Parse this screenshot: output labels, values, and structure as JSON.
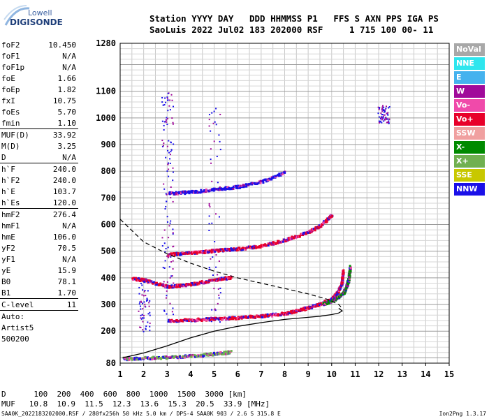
{
  "logo": {
    "top": "Lowell",
    "bottom": "DIGISONDE"
  },
  "header": {
    "line1": "Station YYYY DAY   DDD HHMMSS P1   FFS S AXN PPS IGA PS",
    "line2": "SaoLuis 2022 Jul02 183 202000 RSF     1 715 100 00- 11"
  },
  "params": [
    {
      "label": "foF2",
      "value": "10.450"
    },
    {
      "label": "foF1",
      "value": "N/A"
    },
    {
      "label": "foF1p",
      "value": "N/A"
    },
    {
      "label": "foE",
      "value": "1.66"
    },
    {
      "label": "foEp",
      "value": "1.82"
    },
    {
      "label": "fxI",
      "value": "10.75"
    },
    {
      "label": "foEs",
      "value": "5.70"
    },
    {
      "label": "fmin",
      "value": "1.10",
      "sep_after": true
    },
    {
      "label": "MUF(D)",
      "value": "33.92"
    },
    {
      "label": "M(D)",
      "value": "3.25"
    },
    {
      "label": "D",
      "value": "N/A",
      "sep_after": true
    },
    {
      "label": "h`F",
      "value": "240.0"
    },
    {
      "label": "h`F2",
      "value": "240.0"
    },
    {
      "label": "h`E",
      "value": "103.7"
    },
    {
      "label": "h`Es",
      "value": "120.0",
      "sep_after": true
    },
    {
      "label": "hmF2",
      "value": "276.4"
    },
    {
      "label": "hmF1",
      "value": "N/A"
    },
    {
      "label": "hmE",
      "value": "106.0"
    },
    {
      "label": "yF2",
      "value": "70.5"
    },
    {
      "label": "yF1",
      "value": "N/A"
    },
    {
      "label": "yE",
      "value": "15.9"
    },
    {
      "label": "B0",
      "value": "78.1"
    },
    {
      "label": "B1",
      "value": "1.70",
      "sep_after": true
    },
    {
      "label": "C-level",
      "value": "11",
      "sep_after": true
    },
    {
      "label": "Auto:",
      "value": ""
    },
    {
      "label": "Artist5",
      "value": ""
    },
    {
      "label": "500200",
      "value": ""
    }
  ],
  "legend": [
    {
      "label": "NoVal",
      "color": "#a8a8a8"
    },
    {
      "label": "NNE",
      "color": "#2ee6ee"
    },
    {
      "label": "E",
      "color": "#45b2ee"
    },
    {
      "label": "W",
      "color": "#a00a9a"
    },
    {
      "label": "Vo-",
      "color": "#f04aaa"
    },
    {
      "label": "Vo+",
      "color": "#e8002a"
    },
    {
      "label": "SSW",
      "color": "#f0a0a0"
    },
    {
      "label": "X-",
      "color": "#008a00"
    },
    {
      "label": "X+",
      "color": "#70b050"
    },
    {
      "label": "SSE",
      "color": "#c8c800"
    },
    {
      "label": "NNW",
      "color": "#1a10e8"
    }
  ],
  "chart_data": {
    "type": "scatter",
    "xlim": [
      1,
      15
    ],
    "ylim": [
      80,
      1280
    ],
    "xticks": [
      "1",
      "2",
      "3",
      "4",
      "5",
      "6",
      "7",
      "8",
      "9",
      "10",
      "11",
      "12",
      "13",
      "14",
      "15"
    ],
    "yticks": [
      "80",
      "200",
      "300",
      "400",
      "500",
      "600",
      "700",
      "800",
      "900",
      "1000",
      "1100",
      "1280"
    ],
    "y_grid_values": [
      80,
      100,
      200,
      300,
      400,
      500,
      600,
      700,
      800,
      900,
      1000,
      1100,
      1200,
      1280
    ],
    "grid": true,
    "traces": [
      {
        "name": "O-trace F2 (1 hop)",
        "color": "#e8002a",
        "x": [
          3.0,
          4.0,
          5.0,
          6.0,
          7.0,
          8.0,
          8.5,
          9.0,
          9.5,
          10.0,
          10.2,
          10.4,
          10.45
        ],
        "y": [
          242,
          245,
          250,
          254,
          260,
          270,
          280,
          292,
          305,
          325,
          345,
          380,
          430
        ]
      },
      {
        "name": "X-trace F2",
        "color": "#008a00",
        "x": [
          9.6,
          10.0,
          10.3,
          10.5,
          10.6,
          10.7,
          10.75
        ],
        "y": [
          305,
          318,
          335,
          350,
          370,
          400,
          445
        ]
      },
      {
        "name": "O-trace F2 (2 hop)",
        "color": "#e8002a",
        "x": [
          3.0,
          4.0,
          5.0,
          6.0,
          7.0,
          8.0,
          9.0,
          9.5,
          10.0
        ],
        "y": [
          490,
          497,
          505,
          512,
          523,
          545,
          575,
          600,
          640
        ]
      },
      {
        "name": "3 hop",
        "color": "#1a10e8",
        "x": [
          3.0,
          4.0,
          5.0,
          6.0,
          7.0,
          8.0
        ],
        "y": [
          720,
          725,
          735,
          745,
          765,
          800
        ]
      },
      {
        "name": "Es",
        "color": "#e8002a",
        "x": [
          1.5,
          2.0,
          3.0,
          4.0,
          5.0,
          5.7
        ],
        "y": [
          400,
          395,
          370,
          380,
          395,
          405
        ]
      },
      {
        "name": "E-low",
        "color": "#70b050",
        "x": [
          1.1,
          2.0,
          3.0,
          4.0,
          5.0,
          5.7
        ],
        "y": [
          100,
          102,
          105,
          110,
          118,
          125
        ]
      }
    ],
    "profile_solid": {
      "x": [
        1.1,
        2,
        3,
        4,
        5,
        6,
        7,
        8,
        9,
        9.5,
        10,
        10.3,
        10.45,
        10.3
      ],
      "y": [
        100,
        118,
        145,
        175,
        200,
        218,
        232,
        244,
        252,
        256,
        262,
        268,
        276,
        286
      ]
    },
    "profile_dashed": {
      "x": [
        1.0,
        2.0,
        3.0,
        4.0,
        5.0,
        6.0,
        7.0,
        8.0,
        9.0,
        9.8,
        10.3,
        10.45
      ],
      "y": [
        620,
        535,
        490,
        455,
        425,
        400,
        380,
        360,
        340,
        320,
        300,
        285
      ]
    }
  },
  "bottom": {
    "line1": "D      100  200  400  600  800  1000  1500  3000 [km]",
    "line2": "MUF   10.8  10.9  11.5  12.3  13.6  15.3  20.5  33.9 [MHz]",
    "line3": "SAA0K_2022183202000.RSF / 280fx256h 50 kHz 5.0 km / DPS-4 SAA0K 903 / 2.6 S 315.8 E",
    "version": "Ion2Png 1.3.17"
  }
}
